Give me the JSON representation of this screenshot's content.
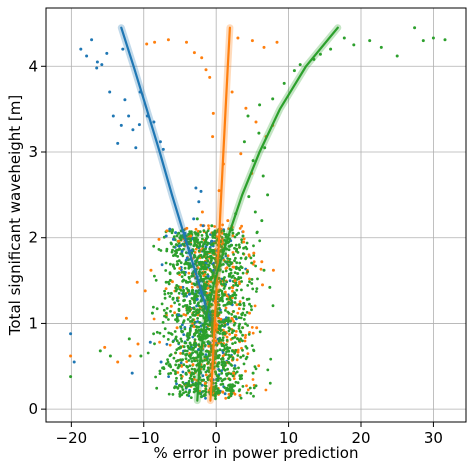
{
  "chart_data": {
    "type": "scatter",
    "title": "",
    "xlabel": "% error in power prediction",
    "ylabel": "Total significant waveheight [m]",
    "xlim": [
      -23.5,
      34.5
    ],
    "ylim": [
      -0.15,
      4.68
    ],
    "xticks": [
      -20,
      -10,
      0,
      10,
      20,
      30
    ],
    "yticks": [
      0,
      1,
      2,
      3,
      4
    ],
    "grid": true,
    "legend": "none",
    "series": [
      {
        "color": "#1f77b4",
        "trend": [
          [
            -13.1,
            4.45
          ],
          [
            -11.4,
            4.0
          ],
          [
            -9.6,
            3.5
          ],
          [
            -7.8,
            3.0
          ],
          [
            -6.1,
            2.5
          ],
          [
            -4.3,
            2.0
          ],
          [
            -2.5,
            1.5
          ],
          [
            -0.9,
            1.05
          ]
        ],
        "points": [
          [
            -20.1,
            0.88
          ],
          [
            -19.6,
            0.55
          ],
          [
            -18.7,
            4.2
          ],
          [
            -17.9,
            4.12
          ],
          [
            -17.2,
            4.31
          ],
          [
            -16.5,
            3.98
          ],
          [
            -16.4,
            4.05
          ],
          [
            -15.8,
            4.02
          ],
          [
            -15.1,
            4.15
          ],
          [
            -14.7,
            3.7
          ],
          [
            -14.2,
            3.42
          ],
          [
            -13.6,
            3.1
          ],
          [
            -13.1,
            3.31
          ],
          [
            -12.6,
            3.61
          ],
          [
            -12.1,
            3.42
          ],
          [
            -12.9,
            4.2
          ],
          [
            -11.5,
            3.26
          ],
          [
            -11.1,
            3.05
          ],
          [
            -10.6,
            3.32
          ],
          [
            -10.5,
            3.7
          ],
          [
            -9.9,
            2.58
          ],
          [
            -9.5,
            3.42
          ],
          [
            -8.6,
            3.35
          ],
          [
            -7.7,
            3.12
          ],
          [
            -7.3,
            3.03
          ],
          [
            -6.9,
            2.02
          ],
          [
            -6.4,
            2.1
          ],
          [
            -5.9,
            1.98
          ],
          [
            -5.6,
            2.06
          ],
          [
            -5.1,
            1.9
          ],
          [
            -4.7,
            1.84
          ],
          [
            -4.3,
            2.05
          ],
          [
            -4.0,
            1.76
          ],
          [
            -3.4,
            1.85
          ],
          [
            -3.1,
            2.22
          ],
          [
            -2.8,
            2.58
          ],
          [
            -2.4,
            2.42
          ],
          [
            -2.1,
            2.54
          ],
          [
            -1.8,
            2.14
          ],
          [
            -1.4,
            1.7
          ],
          [
            -1.1,
            1.55
          ],
          [
            -0.6,
            1.96
          ],
          [
            -0.3,
            1.62
          ],
          [
            0.2,
            1.85
          ],
          [
            -4.6,
            1.42
          ],
          [
            -3.7,
            1.34
          ],
          [
            -2.6,
            1.28
          ],
          [
            -5.2,
            1.1
          ],
          [
            -11.6,
            0.42
          ],
          [
            -9.1,
            0.78
          ],
          [
            -7.6,
            0.55
          ]
        ]
      },
      {
        "color": "#ff7f0e",
        "trend": [
          [
            -0.8,
            0.1
          ],
          [
            -0.5,
            0.5
          ],
          [
            -0.2,
            1.0
          ],
          [
            0.1,
            1.5
          ],
          [
            0.4,
            2.0
          ],
          [
            0.7,
            2.5
          ],
          [
            1.0,
            3.0
          ],
          [
            1.3,
            3.5
          ],
          [
            1.6,
            4.0
          ],
          [
            1.9,
            4.45
          ]
        ],
        "points": [
          [
            -9.6,
            4.26
          ],
          [
            -8.5,
            4.28
          ],
          [
            -6.6,
            4.31
          ],
          [
            -4.1,
            4.28
          ],
          [
            -3.0,
            4.16
          ],
          [
            -2.0,
            4.1
          ],
          [
            -1.4,
            3.96
          ],
          [
            -0.9,
            3.87
          ],
          [
            3.0,
            4.33
          ],
          [
            5.0,
            4.3
          ],
          [
            6.6,
            4.22
          ],
          [
            8.4,
            4.28
          ],
          [
            2.2,
            3.7
          ],
          [
            4.1,
            3.51
          ],
          [
            5.5,
            3.35
          ],
          [
            6.9,
            3.18
          ],
          [
            7.8,
            3.31
          ],
          [
            3.4,
            2.98
          ],
          [
            4.9,
            2.75
          ],
          [
            1.0,
            2.86
          ],
          [
            -0.5,
            3.18
          ],
          [
            0.4,
            2.55
          ],
          [
            -1.9,
            2.3
          ],
          [
            -3.5,
            2.02
          ],
          [
            -5.2,
            1.96
          ],
          [
            -6.8,
            2.08
          ],
          [
            -7.9,
            1.98
          ],
          [
            -9.0,
            1.62
          ],
          [
            -9.8,
            1.38
          ],
          [
            -10.9,
            1.48
          ],
          [
            -12.4,
            1.06
          ],
          [
            -10.8,
            0.76
          ],
          [
            -11.9,
            0.62
          ],
          [
            -13.6,
            0.55
          ],
          [
            -15.4,
            0.72
          ],
          [
            -20.1,
            0.62
          ],
          [
            3.8,
            1.95
          ],
          [
            5.2,
            1.82
          ],
          [
            6.3,
            1.72
          ],
          [
            7.9,
            1.62
          ],
          [
            6.4,
            1.45
          ],
          [
            2.6,
            1.5
          ],
          [
            -2.5,
            1.65
          ],
          [
            -4.9,
            1.42
          ],
          [
            -6.2,
            1.2
          ],
          [
            -5.4,
            0.95
          ],
          [
            4.6,
            1.12
          ],
          [
            5.6,
            0.95
          ],
          [
            -3.2,
            0.52
          ],
          [
            2.4,
            0.42
          ],
          [
            -1.5,
            0.3
          ],
          [
            0.9,
            0.2
          ],
          [
            -0.4,
            3.45
          ],
          [
            1.6,
            2.2
          ]
        ]
      },
      {
        "color": "#2ca02c",
        "trend": [
          [
            -2.6,
            0.1
          ],
          [
            -2.3,
            0.5
          ],
          [
            -1.6,
            1.0
          ],
          [
            -0.2,
            1.5
          ],
          [
            1.6,
            2.0
          ],
          [
            3.6,
            2.5
          ],
          [
            6.0,
            3.0
          ],
          [
            8.8,
            3.5
          ],
          [
            12.4,
            4.0
          ],
          [
            16.8,
            4.45
          ]
        ],
        "points": [
          [
            -20.1,
            0.38
          ],
          [
            -16.0,
            0.68
          ],
          [
            -14.6,
            0.62
          ],
          [
            -12.0,
            0.82
          ],
          [
            -10.4,
            0.62
          ],
          [
            -8.8,
            1.12
          ],
          [
            -7.4,
            0.48
          ],
          [
            -6.2,
            1.35
          ],
          [
            -5.5,
            1.92
          ],
          [
            -4.8,
            2.08
          ],
          [
            -3.4,
            1.82
          ],
          [
            -2.6,
            2.22
          ],
          [
            -1.5,
            1.68
          ],
          [
            -0.6,
            2.14
          ],
          [
            0.6,
            1.96
          ],
          [
            1.8,
            1.55
          ],
          [
            2.7,
            2.28
          ],
          [
            3.7,
            2.02
          ],
          [
            4.5,
            2.48
          ],
          [
            5.4,
            2.3
          ],
          [
            6.3,
            2.2
          ],
          [
            7.1,
            2.5
          ],
          [
            6.5,
            2.72
          ],
          [
            5.1,
            2.9
          ],
          [
            3.9,
            3.12
          ],
          [
            5.9,
            3.22
          ],
          [
            6.7,
            3.05
          ],
          [
            4.4,
            3.42
          ],
          [
            6.0,
            3.55
          ],
          [
            7.8,
            3.62
          ],
          [
            9.4,
            3.8
          ],
          [
            10.8,
            3.95
          ],
          [
            11.6,
            4.02
          ],
          [
            13.5,
            4.08
          ],
          [
            14.4,
            4.14
          ],
          [
            15.8,
            4.2
          ],
          [
            17.7,
            4.33
          ],
          [
            19.0,
            4.25
          ],
          [
            21.2,
            4.3
          ],
          [
            22.8,
            4.22
          ],
          [
            25.0,
            4.12
          ],
          [
            27.4,
            4.45
          ],
          [
            28.6,
            4.3
          ],
          [
            30.0,
            4.33
          ],
          [
            31.6,
            4.31
          ],
          [
            -4.6,
            0.65
          ],
          [
            -3.8,
            0.45
          ],
          [
            -2.2,
            0.3
          ],
          [
            -5.6,
            0.82
          ],
          [
            -6.9,
            1.12
          ],
          [
            3.2,
            0.8
          ],
          [
            4.3,
            1.28
          ],
          [
            5.1,
            0.42
          ],
          [
            7.4,
            1.42
          ],
          [
            6.6,
            1.62
          ],
          [
            -4.1,
            1.48
          ],
          [
            2.0,
            0.62
          ],
          [
            0.5,
            0.95
          ]
        ]
      }
    ],
    "point_clouds": [
      {
        "color": "#1f77b4",
        "count": 220,
        "x_center": -1.5,
        "x_spread": 3.2,
        "y_min": 0.12,
        "y_max": 2.1
      },
      {
        "color": "#ff7f0e",
        "count": 380,
        "x_center": -0.6,
        "x_spread": 3.9,
        "y_min": 0.12,
        "y_max": 2.15
      },
      {
        "color": "#2ca02c",
        "count": 1400,
        "x_center": -1.2,
        "x_spread": 4.2,
        "y_min": 0.12,
        "y_max": 2.1
      }
    ]
  }
}
